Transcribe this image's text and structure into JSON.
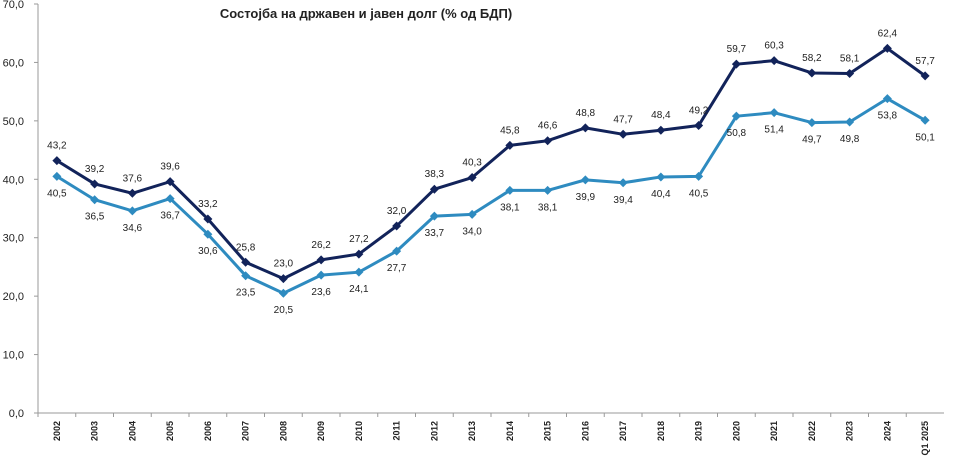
{
  "chart_data": {
    "type": "line",
    "title": "Состојба на државен и јавен долг (% од БДП)",
    "xlabel": "",
    "ylabel": "",
    "ylim": [
      0,
      70
    ],
    "yticks": [
      "0,0",
      "10,0",
      "20,0",
      "30,0",
      "40,0",
      "50,0",
      "60,0",
      "70,0"
    ],
    "grid": false,
    "legend": "none",
    "categories": [
      "2002",
      "2003",
      "2004",
      "2005",
      "2006",
      "2007",
      "2008",
      "2009",
      "2010",
      "2011",
      "2012",
      "2013",
      "2014",
      "2015",
      "2016",
      "2017",
      "2018",
      "2019",
      "2020",
      "2021",
      "2022",
      "2023",
      "2024",
      "Q1 2025"
    ],
    "series": [
      {
        "color": "#12235a",
        "values": [
          43.2,
          39.2,
          37.6,
          39.6,
          33.2,
          25.8,
          23.0,
          26.2,
          27.2,
          32.0,
          38.3,
          40.3,
          45.8,
          46.6,
          48.8,
          47.7,
          48.4,
          49.2,
          59.7,
          60.3,
          58.2,
          58.1,
          62.4,
          57.7
        ],
        "labels": [
          "43,2",
          "39,2",
          "37,6",
          "39,6",
          "33,2",
          "25,8",
          "23,0",
          "26,2",
          "27,2",
          "32,0",
          "38,3",
          "40,3",
          "45,8",
          "46,6",
          "48,8",
          "47,7",
          "48,4",
          "49,2",
          "59,7",
          "60,3",
          "58,2",
          "58,1",
          "62,4",
          "57,7"
        ]
      },
      {
        "color": "#2e8bc0",
        "values": [
          40.5,
          36.5,
          34.6,
          36.7,
          30.6,
          23.5,
          20.5,
          23.6,
          24.1,
          27.7,
          33.7,
          34.0,
          38.1,
          38.1,
          39.9,
          39.4,
          40.4,
          40.5,
          50.8,
          51.4,
          49.7,
          49.8,
          53.8,
          50.1
        ],
        "labels": [
          "40,5",
          "36,5",
          "34,6",
          "36,7",
          "30,6",
          "23,5",
          "20,5",
          "23,6",
          "24,1",
          "27,7",
          "33,7",
          "34,0",
          "38,1",
          "38,1",
          "39,9",
          "39,4",
          "40,4",
          "40,5",
          "50,8",
          "51,4",
          "49,7",
          "49,8",
          "53,8",
          "50,1"
        ]
      }
    ]
  }
}
